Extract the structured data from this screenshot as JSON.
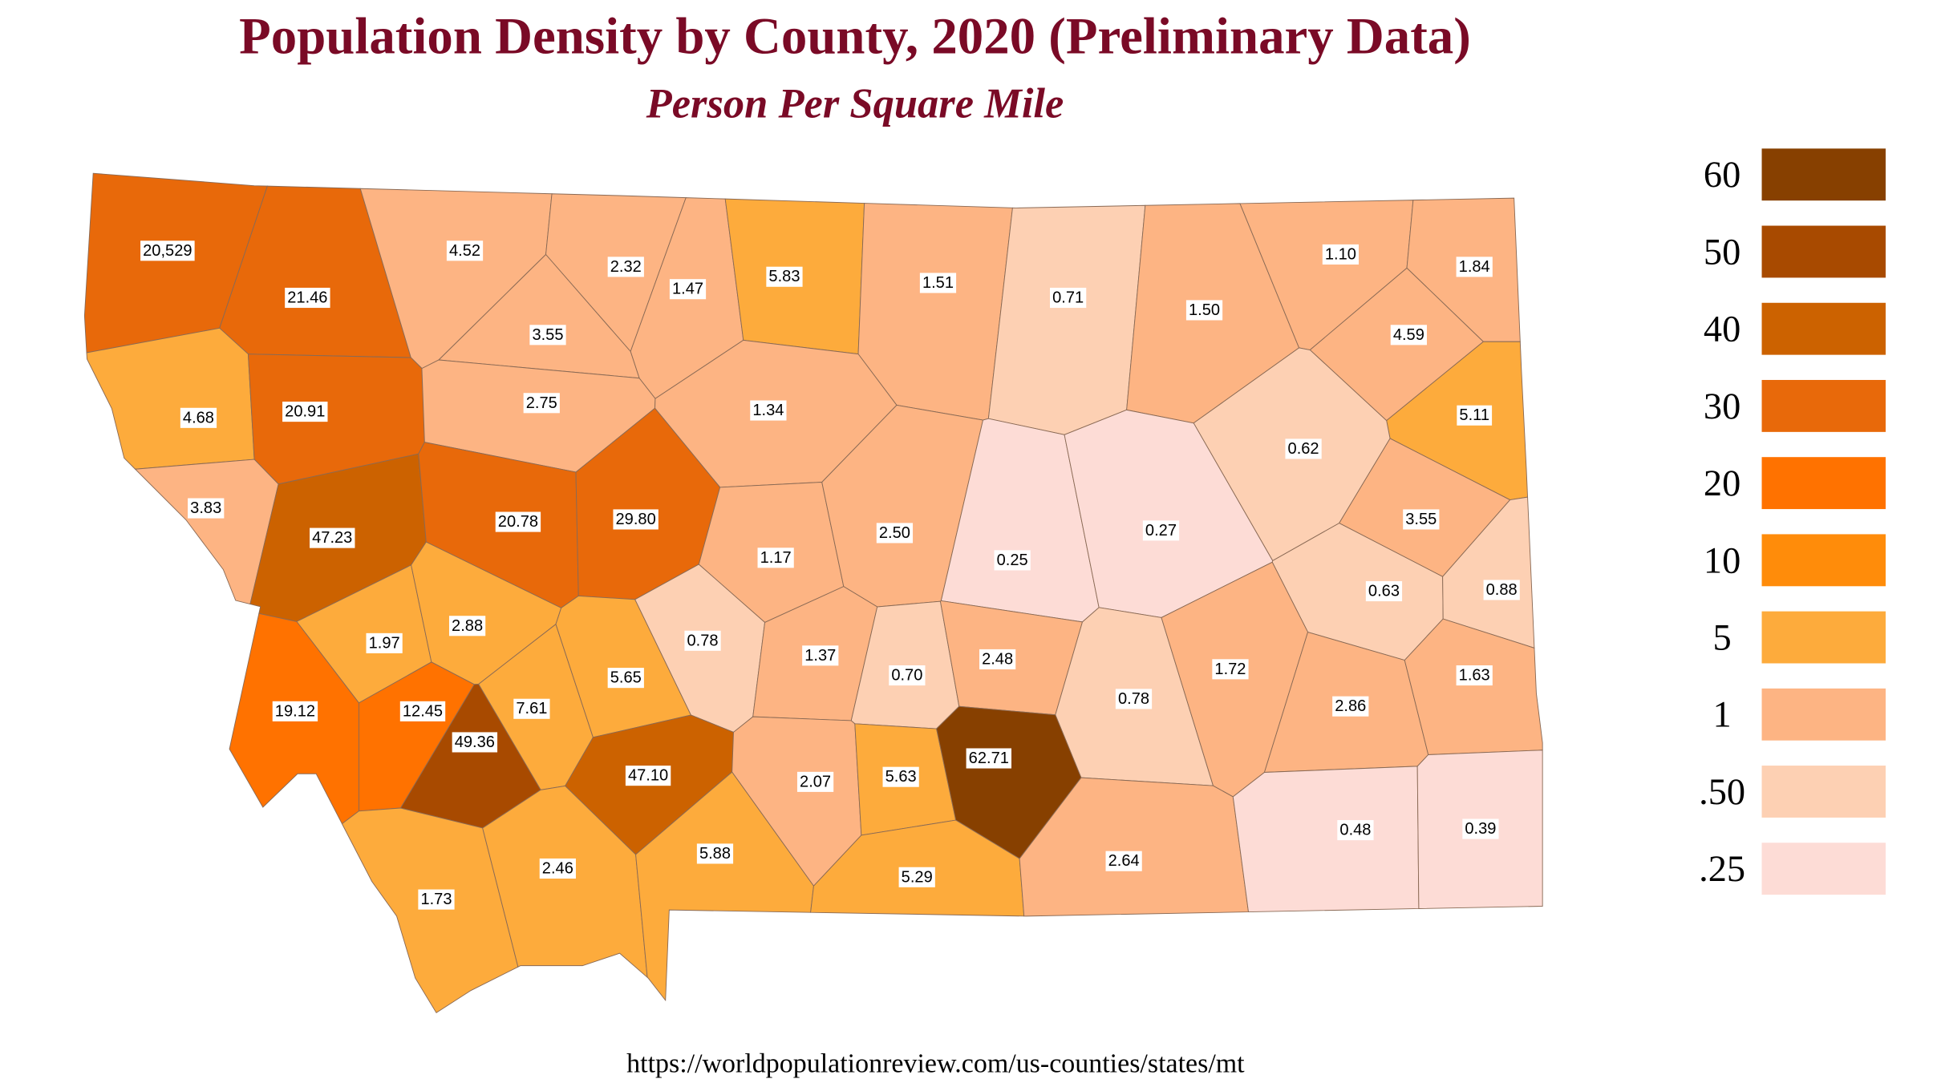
{
  "header": {
    "title": "Population Density by County, 2020 (Preliminary Data)",
    "subtitle": "Person Per Square Mile"
  },
  "legend": [
    {
      "label": "60",
      "color": "#874000"
    },
    {
      "label": "50",
      "color": "#a84a00"
    },
    {
      "label": "40",
      "color": "#cc6200"
    },
    {
      "label": "30",
      "color": "#e8690a"
    },
    {
      "label": "20",
      "color": "#ff7200"
    },
    {
      "label": "10",
      "color": "#ff8c0a"
    },
    {
      "label": "5",
      "color": "#fdab3c"
    },
    {
      "label": "1",
      "color": "#fdb483"
    },
    {
      "label": ".50",
      "color": "#fdd0b3"
    },
    {
      "label": ".25",
      "color": "#fddcd6"
    }
  ],
  "counties": [
    {
      "value": "20,529",
      "color": "#e8690a"
    },
    {
      "value": "21.46",
      "color": "#e8690a"
    },
    {
      "value": "4.52",
      "color": "#fdb483"
    },
    {
      "value": "2.32",
      "color": "#fdb483"
    },
    {
      "value": "1.47",
      "color": "#fdb483"
    },
    {
      "value": "5.83",
      "color": "#fdab3c"
    },
    {
      "value": "1.51",
      "color": "#fdb483"
    },
    {
      "value": "0.71",
      "color": "#fdd0b3"
    },
    {
      "value": "1.50",
      "color": "#fdb483"
    },
    {
      "value": "1.10",
      "color": "#fdb483"
    },
    {
      "value": "1.84",
      "color": "#fdb483"
    },
    {
      "value": "4.59",
      "color": "#fdb483"
    },
    {
      "value": "3.55",
      "color": "#fdb483"
    },
    {
      "value": "4.68",
      "color": "#fdab3c"
    },
    {
      "value": "20.91",
      "color": "#e8690a"
    },
    {
      "value": "2.75",
      "color": "#fdb483"
    },
    {
      "value": "1.34",
      "color": "#fdb483"
    },
    {
      "value": "5.11",
      "color": "#fdab3c"
    },
    {
      "value": "0.62",
      "color": "#fdd0b3"
    },
    {
      "value": "3.83",
      "color": "#fdb483"
    },
    {
      "value": "47.23",
      "color": "#cc6200"
    },
    {
      "value": "20.78",
      "color": "#e8690a"
    },
    {
      "value": "29.80",
      "color": "#e8690a"
    },
    {
      "value": "1.17",
      "color": "#fdb483"
    },
    {
      "value": "2.50",
      "color": "#fdb483"
    },
    {
      "value": "0.25",
      "color": "#fddcd6"
    },
    {
      "value": "0.27",
      "color": "#fddcd6"
    },
    {
      "value": "3.55",
      "color": "#fdb483"
    },
    {
      "value": "0.63",
      "color": "#fdd0b3"
    },
    {
      "value": "0.88",
      "color": "#fdd0b3"
    },
    {
      "value": "1.97",
      "color": "#fdab3c"
    },
    {
      "value": "2.88",
      "color": "#fdab3c"
    },
    {
      "value": "19.12",
      "color": "#ff7200"
    },
    {
      "value": "12.45",
      "color": "#ff7200"
    },
    {
      "value": "7.61",
      "color": "#fdab3c"
    },
    {
      "value": "5.65",
      "color": "#fdab3c"
    },
    {
      "value": "0.78",
      "color": "#fdd0b3"
    },
    {
      "value": "1.37",
      "color": "#fdb483"
    },
    {
      "value": "0.70",
      "color": "#fdd0b3"
    },
    {
      "value": "2.48",
      "color": "#fdb483"
    },
    {
      "value": "0.78",
      "color": "#fdd0b3"
    },
    {
      "value": "1.72",
      "color": "#fdb483"
    },
    {
      "value": "2.86",
      "color": "#fdb483"
    },
    {
      "value": "1.63",
      "color": "#fdb483"
    },
    {
      "value": "49.36",
      "color": "#a84a00"
    },
    {
      "value": "47.10",
      "color": "#cc6200"
    },
    {
      "value": "2.07",
      "color": "#fdb483"
    },
    {
      "value": "5.63",
      "color": "#fdab3c"
    },
    {
      "value": "62.71",
      "color": "#874000"
    },
    {
      "value": "1.73",
      "color": "#fdab3c"
    },
    {
      "value": "2.46",
      "color": "#fdab3c"
    },
    {
      "value": "5.88",
      "color": "#fdab3c"
    },
    {
      "value": "5.29",
      "color": "#fdab3c"
    },
    {
      "value": "2.64",
      "color": "#fdb483"
    },
    {
      "value": "0.48",
      "color": "#fddcd6"
    },
    {
      "value": "0.39",
      "color": "#fddcd6"
    }
  ],
  "footer": {
    "source": "https://worldpopulationreview.com/us-counties/states/mt"
  }
}
